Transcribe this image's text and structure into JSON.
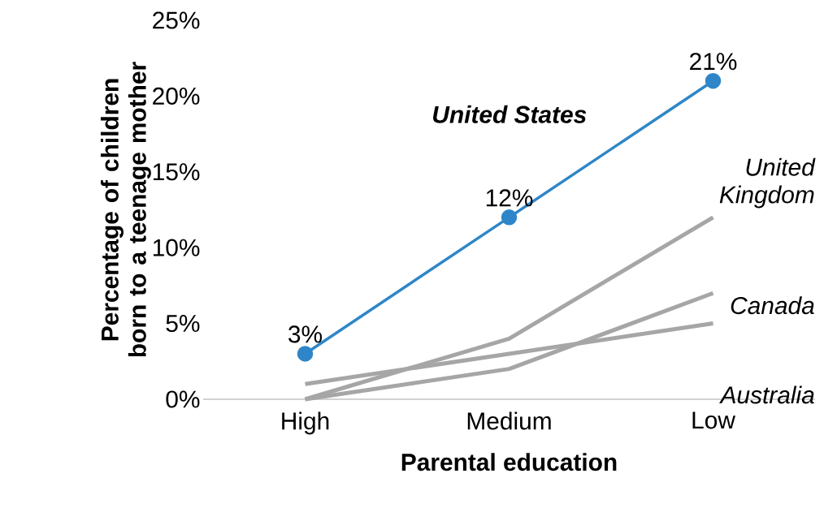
{
  "chart_data": {
    "type": "line",
    "xlabel": "Parental education",
    "ylabel": "Percentage of children born to a teenage mother",
    "categories": [
      "High",
      "Medium",
      "Low"
    ],
    "series": [
      {
        "name": "**United States**",
        "color": "#2e86c8",
        "values": [
          3,
          12,
          21
        ],
        "marker": "circle",
        "value_labels": [
          "3%",
          "12%",
          "21%"
        ]
      },
      {
        "name": "United Kingdom",
        "color": "#a6a6a6",
        "values": [
          0,
          4,
          12
        ],
        "marker": "none"
      },
      {
        "name": "Canada",
        "color": "#a6a6a6",
        "values": [
          0,
          2,
          7
        ],
        "marker": "none"
      },
      {
        "name": "Australia",
        "color": "#a6a6a6",
        "values": [
          1,
          3,
          5
        ],
        "marker": "none"
      }
    ],
    "ylim": [
      0,
      25
    ],
    "yticks": [
      {
        "value": 0,
        "label": "0%"
      },
      {
        "value": 5,
        "label": "5%"
      },
      {
        "value": 10,
        "label": "10%"
      },
      {
        "value": 15,
        "label": "15%"
      },
      {
        "value": 20,
        "label": "20%"
      },
      {
        "value": 25,
        "label": "25%"
      }
    ],
    "grid": false
  }
}
